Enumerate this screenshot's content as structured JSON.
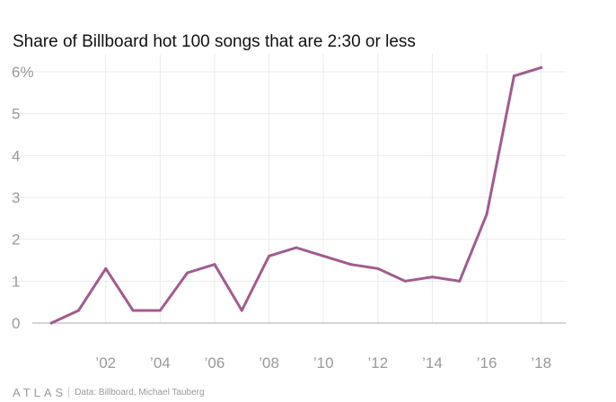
{
  "title": "Share of Billboard hot 100 songs that are 2:30 or less",
  "footer": {
    "logo": "ATLAS",
    "source": "Data: Billboard, Michael Tauberg"
  },
  "colors": {
    "line": "#a15b8e",
    "grid": "#ebebeb",
    "zero": "#a8a8a8",
    "tick_text": "#9a9a9a"
  },
  "chart_data": {
    "type": "line",
    "title": "Share of Billboard hot 100 songs that are 2:30 or less",
    "xlabel": "",
    "ylabel": "",
    "x": [
      2000,
      2001,
      2002,
      2003,
      2004,
      2005,
      2006,
      2007,
      2008,
      2009,
      2010,
      2011,
      2012,
      2013,
      2014,
      2015,
      2016,
      2017,
      2018
    ],
    "series": [
      {
        "values": [
          0,
          0.3,
          1.3,
          0.3,
          0.3,
          1.2,
          1.4,
          0.3,
          1.6,
          1.8,
          1.6,
          1.4,
          1.3,
          1.0,
          1.1,
          1.0,
          2.6,
          5.9,
          6.1
        ]
      }
    ],
    "xlim": [
      1999.5,
      2018.9
    ],
    "ylim": [
      0,
      6.3
    ],
    "xticks": [
      2002,
      2004,
      2006,
      2008,
      2010,
      2012,
      2014,
      2016,
      2018
    ],
    "xtick_labels": [
      "’02",
      "’04",
      "’06",
      "’08",
      "’10",
      "’12",
      "’14",
      "’16",
      "’18"
    ],
    "yticks": [
      0,
      1,
      2,
      3,
      4,
      5,
      6
    ],
    "ytick_labels": [
      "0",
      "1",
      "2",
      "3",
      "4",
      "5",
      "6%"
    ],
    "grid": true,
    "legend": "none"
  }
}
